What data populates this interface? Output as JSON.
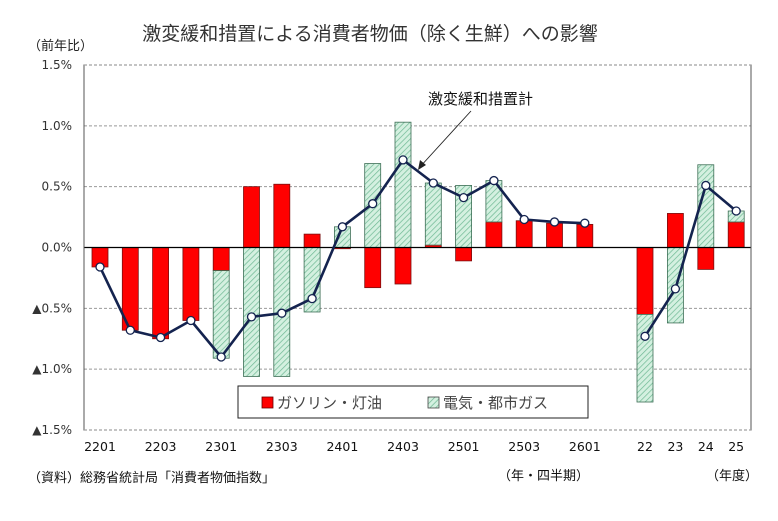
{
  "chart_data": {
    "type": "bar",
    "subtype": "stacked bar with line overlay",
    "title": "激変緩和措置による消費者物価（除く生鮮）への影響",
    "ylabel": "（前年比）",
    "ylim": [
      -1.5,
      1.5
    ],
    "yticks": [
      1.5,
      1.0,
      0.5,
      0.0,
      -0.5,
      -1.0,
      -1.5
    ],
    "ytick_labels": [
      "1.5%",
      "1.0%",
      "0.5%",
      "0.0%",
      "▲0.5%",
      "▲1.0%",
      "▲1.5%"
    ],
    "grid": true,
    "categories": [
      "2201",
      "2202",
      "2203",
      "2204",
      "2301",
      "2302",
      "2303",
      "2304",
      "2401",
      "2402",
      "2403",
      "2404",
      "2501",
      "2502",
      "2503",
      "2504",
      "2601",
      "22",
      "23",
      "24",
      "25"
    ],
    "xtick_labels": [
      {
        "index": 0,
        "label": "2201"
      },
      {
        "index": 2,
        "label": "2203"
      },
      {
        "index": 4,
        "label": "2301"
      },
      {
        "index": 6,
        "label": "2303"
      },
      {
        "index": 8,
        "label": "2401"
      },
      {
        "index": 10,
        "label": "2403"
      },
      {
        "index": 12,
        "label": "2501"
      },
      {
        "index": 14,
        "label": "2503"
      },
      {
        "index": 16,
        "label": "2601"
      },
      {
        "index": 17,
        "label": "22"
      },
      {
        "index": 18,
        "label": "23"
      },
      {
        "index": 19,
        "label": "24"
      },
      {
        "index": 20,
        "label": "25"
      }
    ],
    "series": [
      {
        "name": "ガソリン・灯油",
        "kind": "bar",
        "color": "#ff0000",
        "values": [
          -0.16,
          -0.68,
          -0.75,
          -0.6,
          -0.19,
          0.5,
          0.52,
          0.11,
          -0.01,
          -0.33,
          -0.3,
          0.02,
          -0.11,
          0.21,
          0.22,
          0.2,
          0.19,
          -0.55,
          0.28,
          -0.18,
          0.21
        ]
      },
      {
        "name": "電気・都市ガス",
        "kind": "bar",
        "color": "#c8ecd8",
        "hatch": "#5aa882",
        "values": [
          0.0,
          0.0,
          0.0,
          0.0,
          -0.72,
          -1.06,
          -1.06,
          -0.53,
          0.17,
          0.69,
          1.03,
          0.51,
          0.51,
          0.34,
          0.0,
          0.0,
          0.0,
          -0.72,
          -0.62,
          0.68,
          0.09
        ]
      },
      {
        "name": "激変緩和措置計",
        "kind": "line",
        "color": "#14234f",
        "values": [
          -0.16,
          -0.68,
          -0.74,
          -0.6,
          -0.9,
          -0.57,
          -0.54,
          -0.42,
          0.17,
          0.36,
          0.72,
          0.53,
          0.41,
          0.55,
          0.23,
          0.21,
          0.2,
          -0.73,
          -0.34,
          0.51,
          0.3
        ]
      }
    ],
    "line_breaks_after_index": [
      16
    ],
    "annotation": "激変緩和措置計",
    "legend": {
      "placement": "bottom-center",
      "items": [
        "ガソリン・灯油",
        "電気・都市ガス"
      ]
    },
    "x_group_labels": {
      "quarterly": "（年・四半期）",
      "annual": "（年度）"
    },
    "source": "（資料）総務省統計局「消費者物価指数」"
  }
}
